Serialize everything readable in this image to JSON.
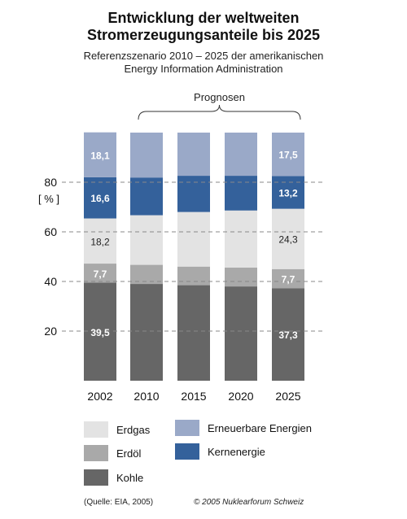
{
  "header": {
    "title_line1": "Entwicklung der weltweiten",
    "title_line2": "Stromerzeugungsanteile bis 2025",
    "subtitle_line1": "Referenzszenario 2010 – 2025 der amerikanischen",
    "subtitle_line2": "Energy Information Administration"
  },
  "chart_data": {
    "type": "bar",
    "stacked": true,
    "categories": [
      "2002",
      "2010",
      "2015",
      "2020",
      "2025"
    ],
    "ylabel": "[ % ]",
    "ylim": [
      0,
      100
    ],
    "yticks": [
      20,
      40,
      60,
      80
    ],
    "annotation": "Prognosen",
    "annotation_span": [
      "2010",
      "2025"
    ],
    "series": [
      {
        "name": "Kohle",
        "color": "#666666",
        "values": [
          39.5,
          39.0,
          38.5,
          38.0,
          37.3
        ]
      },
      {
        "name": "Erdöl",
        "color": "#a9a9a9",
        "values": [
          7.7,
          7.7,
          7.5,
          7.6,
          7.7
        ]
      },
      {
        "name": "Erdgas",
        "color": "#e3e3e3",
        "values": [
          18.2,
          20.0,
          22.0,
          23.0,
          24.3
        ]
      },
      {
        "name": "Kernenergie",
        "color": "#34619b",
        "values": [
          16.6,
          15.2,
          14.6,
          14.0,
          13.2
        ]
      },
      {
        "name": "Erneuerbare Energien",
        "color": "#9aa9c8",
        "values": [
          18.1,
          18.1,
          17.4,
          17.4,
          17.5
        ]
      }
    ],
    "data_labels": [
      {
        "category": "2002",
        "series": "Kohle",
        "text": "39,5"
      },
      {
        "category": "2002",
        "series": "Erdöl",
        "text": "7,7"
      },
      {
        "category": "2002",
        "series": "Erdgas",
        "text": "18,2"
      },
      {
        "category": "2002",
        "series": "Kernenergie",
        "text": "16,6"
      },
      {
        "category": "2002",
        "series": "Erneuerbare Energien",
        "text": "18,1"
      },
      {
        "category": "2025",
        "series": "Kohle",
        "text": "37,3"
      },
      {
        "category": "2025",
        "series": "Erdöl",
        "text": "7,7"
      },
      {
        "category": "2025",
        "series": "Erdgas",
        "text": "24,3"
      },
      {
        "category": "2025",
        "series": "Kernenergie",
        "text": "13,2"
      },
      {
        "category": "2025",
        "series": "Erneuerbare Energien",
        "text": "17,5"
      }
    ],
    "legend": [
      {
        "label": "Erdgas",
        "color": "#e3e3e3"
      },
      {
        "label": "Erneuerbare Energien",
        "color": "#9aa9c8"
      },
      {
        "label": "Erdöl",
        "color": "#a9a9a9"
      },
      {
        "label": "Kernenergie",
        "color": "#34619b"
      },
      {
        "label": "Kohle",
        "color": "#666666"
      }
    ],
    "legend_placement": "bottom",
    "grid": "dashed gridlines at tick values"
  },
  "footer": {
    "source": "(Quelle: EIA, 2005)",
    "copyright": "© 2005 Nuklearforum Schweiz"
  }
}
